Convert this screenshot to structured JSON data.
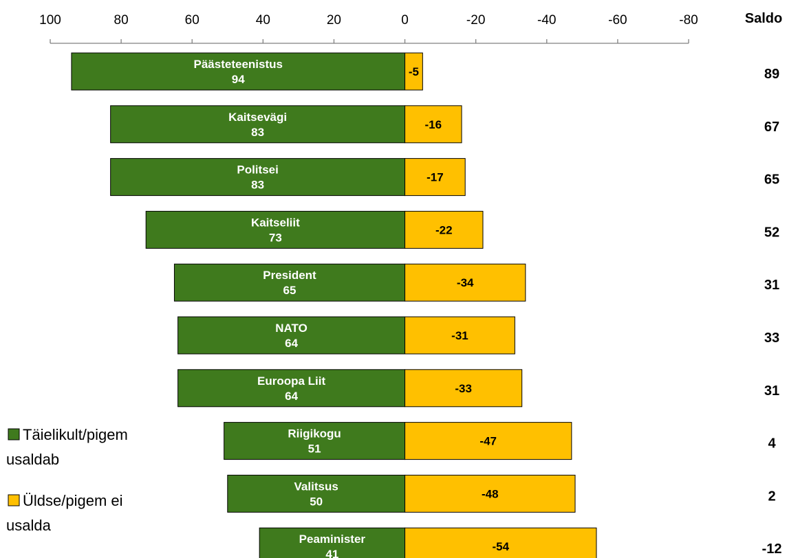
{
  "chart_data": {
    "type": "bar",
    "orientation": "horizontal-diverging",
    "categories": [
      "Päästeteenistus",
      "Kaitsevägi",
      "Politsei",
      "Kaitseliit",
      "President",
      "NATO",
      "Euroopa Liit",
      "Riigikogu",
      "Valitsus",
      "Peaminister"
    ],
    "series": [
      {
        "name": "Täielikult/pigem usaldab",
        "color": "#3f7a1d",
        "values": [
          94,
          83,
          83,
          73,
          65,
          64,
          64,
          51,
          50,
          41
        ]
      },
      {
        "name": "Üldse/pigem ei usalda",
        "color": "#ffc000",
        "values": [
          -5,
          -16,
          -17,
          -22,
          -34,
          -31,
          -33,
          -47,
          -48,
          -54
        ]
      }
    ],
    "saldo_title": "Saldo",
    "saldo": [
      89,
      67,
      65,
      52,
      31,
      33,
      31,
      4,
      2,
      -12
    ],
    "x_ticks": [
      100,
      80,
      60,
      40,
      20,
      0,
      -20,
      -40,
      -60,
      -80
    ],
    "xlim": [
      100,
      -80
    ],
    "legend": {
      "placement": "bottom-left",
      "items": [
        {
          "label_line1": "Täielikult/pigem",
          "label_line2": "usaldab",
          "color": "#3f7a1d"
        },
        {
          "label_line1": "Üldse/pigem ei",
          "label_line2": "usalda",
          "color": "#ffc000"
        }
      ]
    }
  }
}
